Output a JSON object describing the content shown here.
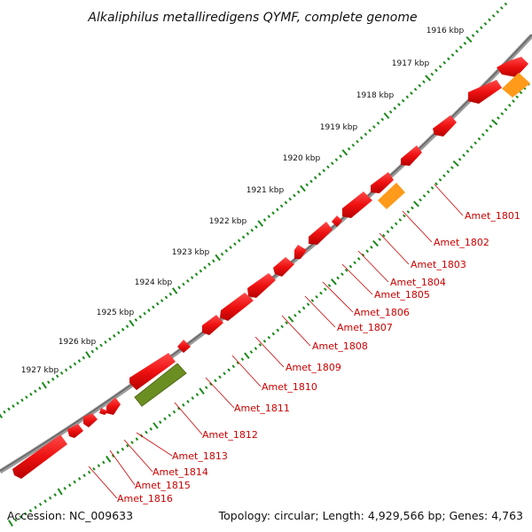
{
  "title": "Alkaliphilus metalliredigens QYMF, complete genome",
  "footer": {
    "accession": "Accession: NC_009633",
    "summary": "Topology: circular; Length: 4,929,566 bp; Genes: 4,763"
  },
  "colors": {
    "gene_red": "#ee1111",
    "gene_orange": "#ff9a1a",
    "gene_green": "#6b8e23",
    "label_red": "#cc0000",
    "tick_green": "#1a8a1a",
    "backbone": "#777777"
  },
  "scale_ticks": [
    "1916 kbp",
    "1917 kbp",
    "1918 kbp",
    "1919 kbp",
    "1920 kbp",
    "1921 kbp",
    "1922 kbp",
    "1923 kbp",
    "1924 kbp",
    "1925 kbp",
    "1926 kbp",
    "1927 kbp"
  ],
  "gene_labels": [
    "Amet_1801",
    "Amet_1802",
    "Amet_1803",
    "Amet_1804",
    "Amet_1805",
    "Amet_1806",
    "Amet_1807",
    "Amet_1808",
    "Amet_1809",
    "Amet_1810",
    "Amet_1811",
    "Amet_1812",
    "Amet_1813",
    "Amet_1814",
    "Amet_1815",
    "Amet_1816"
  ]
}
